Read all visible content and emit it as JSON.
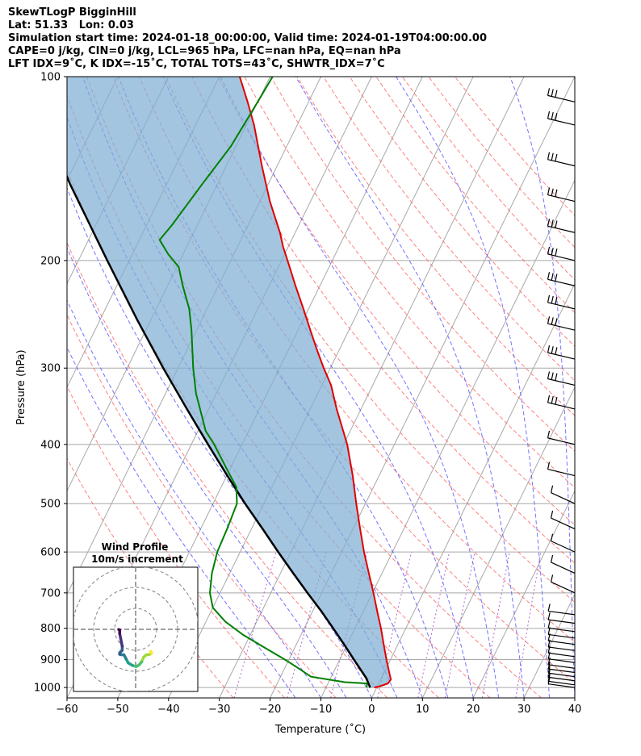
{
  "title_lines": [
    "SkewTLogP BigginHill",
    "Lat: 51.33   Lon: 0.03",
    "Simulation start time: 2024-01-18_00:00:00, Valid time: 2024-01-19T04:00:00.00",
    "CAPE=0 j/kg, CIN=0 j/kg, LCL=965 hPa, LFC=nan hPa, EQ=nan hPa",
    "LFT IDX=9˚C, K IDX=-15˚C, TOTAL TOTS=43˚C, SHWTR_IDX=7˚C"
  ],
  "chart_data": {
    "type": "line",
    "chart_kind": "skew-T log-P diagram",
    "xlabel": "Temperature (˚C)",
    "ylabel": "Pressure (hPa)",
    "xlim": [
      -60,
      40
    ],
    "ylim": [
      1040,
      100
    ],
    "y_scale": "log",
    "x_ticks": [
      -60,
      -50,
      -40,
      -30,
      -20,
      -10,
      0,
      10,
      20,
      30,
      40
    ],
    "y_ticks": [
      100,
      200,
      300,
      400,
      500,
      600,
      700,
      800,
      900,
      1000
    ],
    "grid": true,
    "colors": {
      "temperature": "#e00000",
      "dewpoint": "#008000",
      "parcel": "#000000",
      "cin_shading": "#7fafd4",
      "dry_adiabats": "#ff6060",
      "moist_adiabats": "#5050ff",
      "mixing_ratio": "#a040c0",
      "isotherms": "#a8a8a8"
    },
    "series": [
      {
        "role": "temperature",
        "points": [
          [
            1000,
            -0.5
          ],
          [
            995,
            0.5
          ],
          [
            985,
            1.8
          ],
          [
            970,
            2.0
          ],
          [
            950,
            1.2
          ],
          [
            900,
            -0.8
          ],
          [
            850,
            -2.8
          ],
          [
            800,
            -4.9
          ],
          [
            750,
            -7.3
          ],
          [
            700,
            -9.8
          ],
          [
            650,
            -12.6
          ],
          [
            600,
            -15.6
          ],
          [
            550,
            -18.6
          ],
          [
            500,
            -21.8
          ],
          [
            450,
            -25.2
          ],
          [
            400,
            -29.3
          ],
          [
            350,
            -34.8
          ],
          [
            320,
            -38.2
          ],
          [
            300,
            -41.3
          ],
          [
            280,
            -44.4
          ],
          [
            260,
            -47.6
          ],
          [
            240,
            -51.0
          ],
          [
            220,
            -54.8
          ],
          [
            200,
            -58.8
          ],
          [
            190,
            -61.0
          ],
          [
            180,
            -63.0
          ],
          [
            160,
            -68.0
          ],
          [
            140,
            -73.0
          ],
          [
            120,
            -78.5
          ],
          [
            110,
            -82.0
          ],
          [
            100,
            -86.0
          ]
        ]
      },
      {
        "role": "dewpoint",
        "points": [
          [
            1000,
            -2.0
          ],
          [
            985,
            -2.3
          ],
          [
            980,
            -6.8
          ],
          [
            960,
            -14.0
          ],
          [
            930,
            -17.3
          ],
          [
            900,
            -20.8
          ],
          [
            860,
            -26.0
          ],
          [
            820,
            -31.4
          ],
          [
            780,
            -36.2
          ],
          [
            740,
            -40.0
          ],
          [
            700,
            -42.0
          ],
          [
            650,
            -43.5
          ],
          [
            600,
            -44.5
          ],
          [
            550,
            -44.8
          ],
          [
            500,
            -45.3
          ],
          [
            470,
            -47.0
          ],
          [
            440,
            -50.5
          ],
          [
            400,
            -55.5
          ],
          [
            380,
            -58.5
          ],
          [
            360,
            -60.6
          ],
          [
            330,
            -64.0
          ],
          [
            300,
            -67.0
          ],
          [
            260,
            -71.0
          ],
          [
            240,
            -73.5
          ],
          [
            220,
            -77.0
          ],
          [
            205,
            -79.6
          ],
          [
            195,
            -83.0
          ],
          [
            185,
            -86.0
          ],
          [
            175,
            -85.0
          ],
          [
            150,
            -83.0
          ],
          [
            130,
            -81.0
          ],
          [
            110,
            -80.0
          ],
          [
            100,
            -79.5
          ]
        ]
      },
      {
        "role": "parcel",
        "points": [
          [
            1000,
            -1.3
          ],
          [
            965,
            -3.0
          ],
          [
            900,
            -7.2
          ],
          [
            850,
            -10.6
          ],
          [
            800,
            -14.3
          ],
          [
            750,
            -18.3
          ],
          [
            700,
            -22.8
          ],
          [
            650,
            -27.5
          ],
          [
            600,
            -32.5
          ],
          [
            550,
            -37.8
          ],
          [
            500,
            -43.7
          ],
          [
            450,
            -49.9
          ],
          [
            400,
            -56.7
          ],
          [
            350,
            -64.3
          ],
          [
            300,
            -72.9
          ],
          [
            250,
            -82.7
          ],
          [
            200,
            -94.3
          ],
          [
            170,
            -102.6
          ],
          [
            150,
            -109.0
          ],
          [
            130,
            -115.7
          ],
          [
            115,
            -121.5
          ],
          [
            100,
            -128.0
          ]
        ]
      }
    ],
    "wind_barb_levels_hPa": [
      1000,
      990,
      975,
      960,
      945,
      930,
      910,
      890,
      870,
      850,
      830,
      810,
      785,
      760,
      700,
      650,
      600,
      550,
      500,
      450,
      400,
      350,
      320,
      290,
      260,
      240,
      220,
      200,
      180,
      160,
      140,
      120,
      110
    ],
    "inset": {
      "title": "Wind Profile",
      "subtitle": "10m/s increment",
      "rings_ms": [
        10,
        20,
        30
      ],
      "hodograph_uv": [
        [
          7.2,
          -10.5
        ],
        [
          7.5,
          -11.0
        ],
        [
          7.5,
          -11.5
        ],
        [
          6.5,
          -12.0
        ],
        [
          5.0,
          -12.2
        ],
        [
          3.8,
          -13.3
        ],
        [
          2.9,
          -15.5
        ],
        [
          1.6,
          -17.0
        ],
        [
          0.2,
          -17.8
        ],
        [
          -1.5,
          -17.2
        ],
        [
          -3.5,
          -16.0
        ],
        [
          -4.6,
          -14.0
        ],
        [
          -5.6,
          -12.1
        ],
        [
          -6.8,
          -12.1
        ],
        [
          -7.6,
          -11.9
        ],
        [
          -7.6,
          -11.2
        ],
        [
          -6.4,
          -10.0
        ],
        [
          -6.4,
          -8.0
        ],
        [
          -6.8,
          -6.0
        ],
        [
          -7.2,
          -4.0
        ],
        [
          -7.6,
          -2.0
        ],
        [
          -7.6,
          -0.3
        ],
        [
          -8.0,
          -0.1
        ]
      ]
    }
  }
}
